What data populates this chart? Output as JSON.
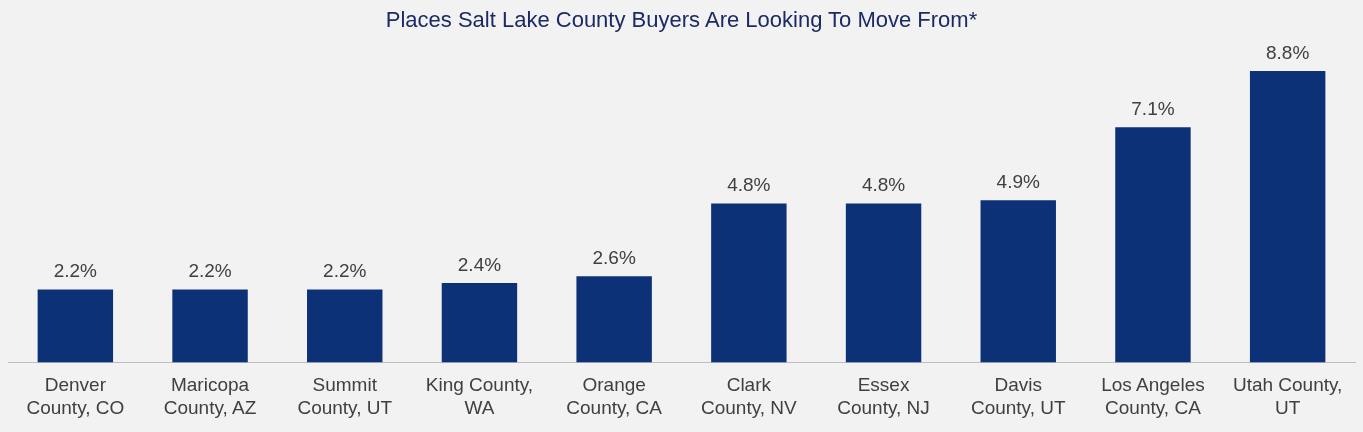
{
  "chart_data": {
    "type": "bar",
    "title": "Places Salt Lake County Buyers Are Looking To Move From*",
    "categories": [
      "Denver County, CO",
      "Maricopa County, AZ",
      "Summit County, UT",
      "King County, WA",
      "Orange County, CA",
      "Clark County, NV",
      "Essex County, NJ",
      "Davis County, UT",
      "Los Angeles County, CA",
      "Utah County, UT"
    ],
    "values": [
      2.2,
      2.2,
      2.2,
      2.4,
      2.6,
      4.8,
      4.8,
      4.9,
      7.1,
      8.8
    ],
    "value_labels": [
      "2.2%",
      "2.2%",
      "2.2%",
      "2.4%",
      "2.6%",
      "4.8%",
      "4.8%",
      "4.9%",
      "7.1%",
      "8.8%"
    ],
    "color": "#0c3177"
  }
}
